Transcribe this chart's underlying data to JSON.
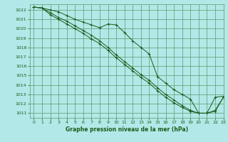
{
  "title": "Graphe pression niveau de la mer (hPa)",
  "bg_color": "#b3e8e8",
  "grid_color": "#5a9a6a",
  "line_color": "#1a5c1a",
  "xlim": [
    -0.5,
    23
  ],
  "ylim": [
    1010.5,
    1022.6
  ],
  "xticks": [
    0,
    1,
    2,
    3,
    4,
    5,
    6,
    7,
    8,
    9,
    10,
    11,
    12,
    13,
    14,
    15,
    16,
    17,
    18,
    19,
    20,
    21,
    22,
    23
  ],
  "yticks": [
    1011,
    1012,
    1013,
    1014,
    1015,
    1016,
    1017,
    1018,
    1019,
    1020,
    1021,
    1022
  ],
  "series": [
    [
      1022.3,
      1022.2,
      1022.0,
      1021.8,
      1021.4,
      1021.0,
      1020.7,
      1020.4,
      1020.1,
      1020.5,
      1020.4,
      1019.6,
      1018.7,
      1018.0,
      1017.3,
      1014.9,
      1014.2,
      1013.5,
      1013.0,
      1012.5,
      1011.0,
      1011.0,
      1012.7,
      1012.8
    ],
    [
      1022.3,
      1022.2,
      1021.7,
      1021.2,
      1020.8,
      1020.3,
      1019.8,
      1019.3,
      1018.7,
      1018.0,
      1017.2,
      1016.5,
      1015.8,
      1015.1,
      1014.5,
      1013.7,
      1013.0,
      1012.4,
      1011.8,
      1011.3,
      1011.0,
      1011.0,
      1011.3,
      1012.7
    ],
    [
      1022.3,
      1022.2,
      1021.5,
      1021.0,
      1020.5,
      1020.0,
      1019.5,
      1018.9,
      1018.4,
      1017.7,
      1016.9,
      1016.2,
      1015.5,
      1014.8,
      1014.2,
      1013.4,
      1012.7,
      1012.1,
      1011.6,
      1011.2,
      1011.0,
      1011.0,
      1011.2,
      1012.7
    ]
  ]
}
